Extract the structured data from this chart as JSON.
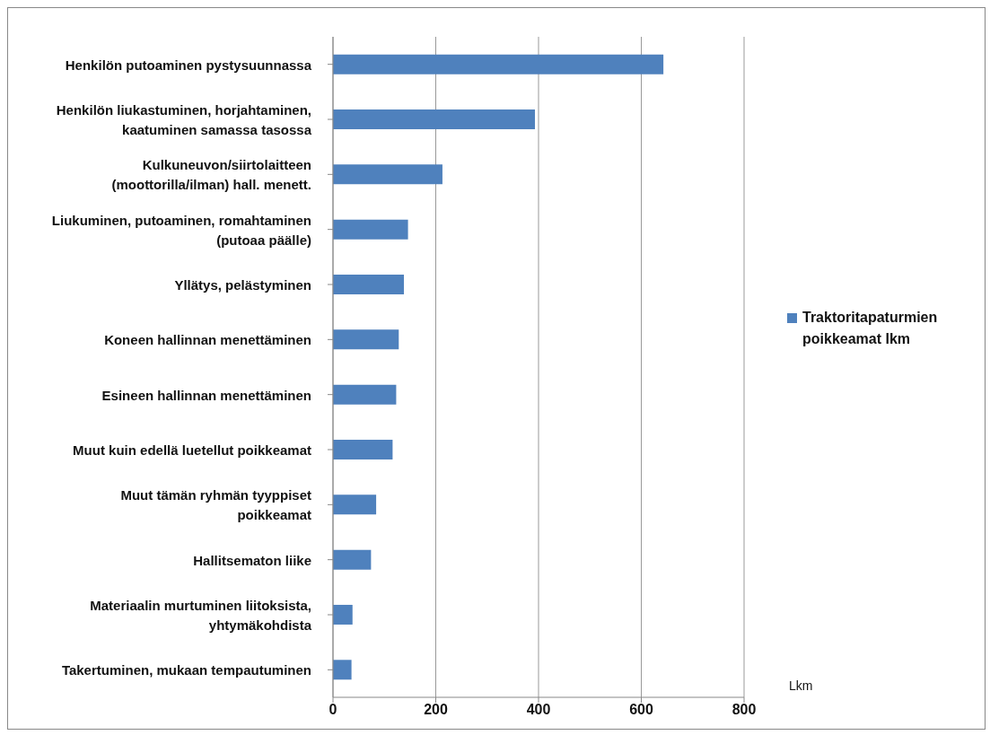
{
  "chart_data": {
    "type": "bar",
    "orientation": "horizontal",
    "categories": [
      "Henkilön putoaminen pystysuunnassa",
      "Henkilön liukastuminen, horjahtaminen, kaatuminen samassa tasossa",
      "Kulkuneuvon/siirtolaitteen (moottorilla/ilman) hall. menett.",
      "Liukuminen, putoaminen, romahtaminen (putoaa päälle)",
      "Yllätys, pelästyminen",
      "Koneen hallinnan menettäminen",
      "Esineen hallinnan menettäminen",
      "Muut kuin edellä luetellut poikkeamat",
      "Muut tämän ryhmän tyyppiset poikkeamat",
      "Hallitsematon liike",
      "Materiaalin murtuminen liitoksista, yhtymäkohdista",
      "Takertuminen, mukaan tempautuminen"
    ],
    "series": [
      {
        "name": "Traktoritapaturmien poikkeamat lkm",
        "color": "#4f81bd",
        "values": [
          643,
          393,
          213,
          146,
          138,
          128,
          123,
          116,
          84,
          74,
          38,
          36
        ]
      }
    ],
    "xlabel": "Lkm",
    "xlim": [
      0,
      800
    ],
    "xticks": [
      0,
      200,
      400,
      600,
      800
    ],
    "grid": "x",
    "legend": "right"
  }
}
